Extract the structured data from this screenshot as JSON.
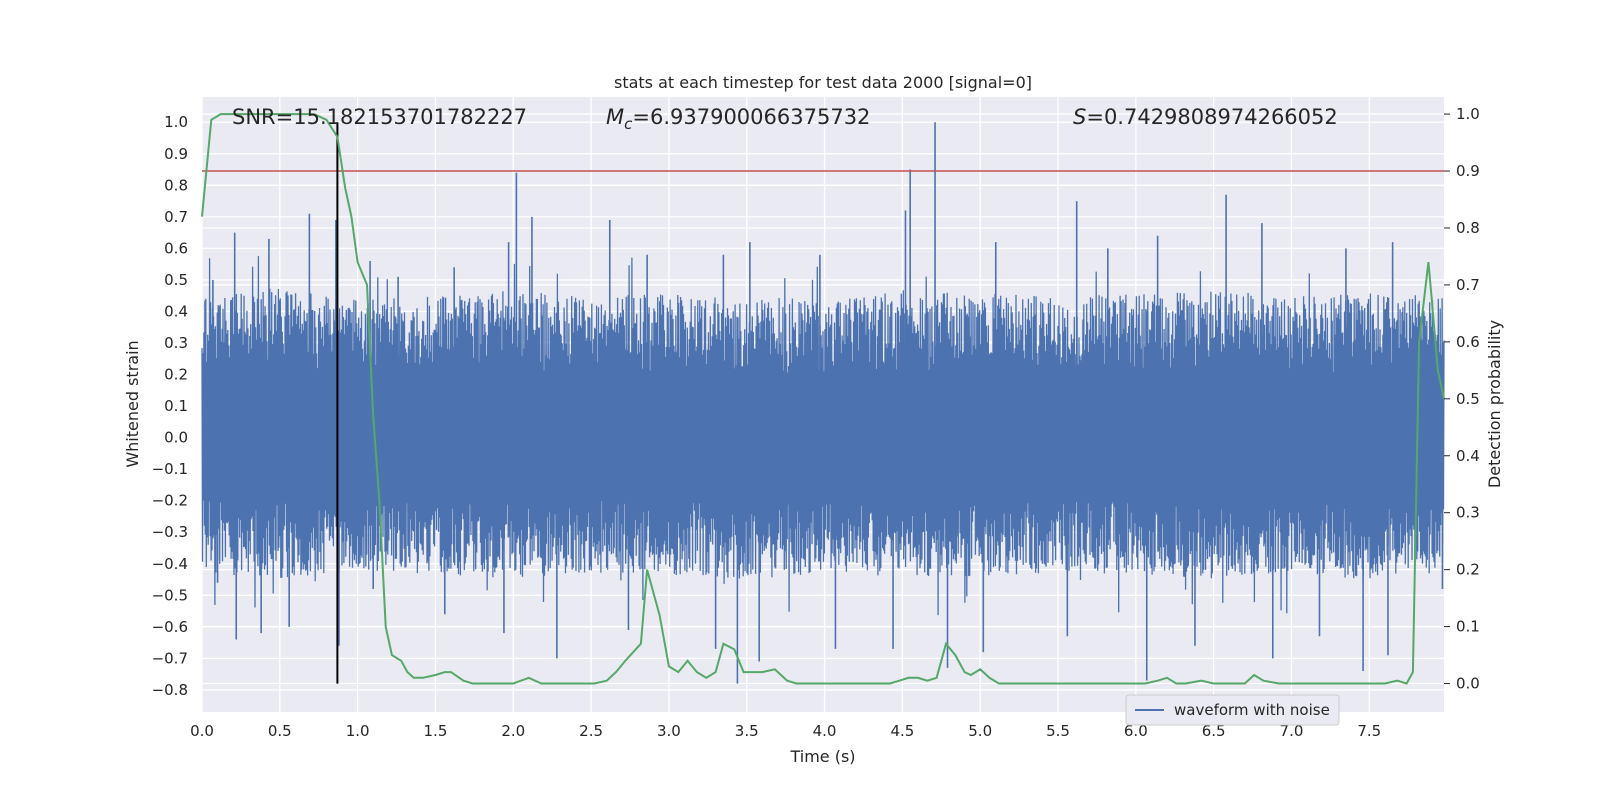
{
  "chart_data": {
    "type": "line",
    "title": "stats at each timestep for test data 2000 [signal=0]",
    "xlabel": "Time (s)",
    "ylabel": "Whitened strain",
    "y2label": "Detection probability",
    "xlim": [
      0.0,
      7.98
    ],
    "ylim": [
      -0.87,
      1.08
    ],
    "y2lim": [
      -0.05,
      1.03
    ],
    "xticks": [
      "0.0",
      "0.5",
      "1.0",
      "1.5",
      "2.0",
      "2.5",
      "3.0",
      "3.5",
      "4.0",
      "4.5",
      "5.0",
      "5.5",
      "6.0",
      "6.5",
      "7.0",
      "7.5"
    ],
    "yticks": [
      "−0.8",
      "−0.7",
      "−0.6",
      "−0.5",
      "−0.4",
      "−0.3",
      "−0.2",
      "−0.1",
      "0.0",
      "0.1",
      "0.2",
      "0.3",
      "0.4",
      "0.5",
      "0.6",
      "0.7",
      "0.8",
      "0.9",
      "1.0"
    ],
    "y2ticks": [
      "0.0",
      "0.1",
      "0.2",
      "0.3",
      "0.4",
      "0.5",
      "0.6",
      "0.7",
      "0.8",
      "0.9",
      "1.0"
    ],
    "grid": true,
    "legend": {
      "placement": "bottom-right",
      "entries": [
        "waveform with noise"
      ]
    },
    "annotations": {
      "snr": "SNR=15.182153701782227",
      "mc_symbol": "M",
      "mc_sub": "c",
      "mc_value": "=6.937900066375732",
      "s_symbol": "S",
      "s_value": "=0.7429808974266052"
    },
    "threshold_line": {
      "axis": "right",
      "y": 0.9,
      "color": "#c44e52"
    },
    "marker_line": {
      "x": 0.87,
      "ymin": -0.78,
      "ymax": 1.0,
      "color": "#000000"
    },
    "colors": {
      "waveform": "#4c72b0",
      "probability": "#55a868",
      "plot_bg": "#eaeaf2",
      "grid": "#ffffff"
    },
    "series": [
      {
        "name": "waveform with noise",
        "axis": "left",
        "description_of_values": "whitened strain noise, typical envelope",
        "envelope_x": [
          0.0,
          0.5,
          1.0,
          1.5,
          2.0,
          2.5,
          3.0,
          3.5,
          4.0,
          4.5,
          5.0,
          5.5,
          6.0,
          6.5,
          7.0,
          7.5,
          7.98
        ],
        "envelope_upper": [
          0.45,
          0.48,
          0.44,
          0.46,
          0.47,
          0.45,
          0.46,
          0.45,
          0.44,
          0.47,
          0.46,
          0.45,
          0.46,
          0.47,
          0.45,
          0.46,
          0.45
        ],
        "envelope_lower": [
          -0.43,
          -0.45,
          -0.42,
          -0.44,
          -0.45,
          -0.43,
          -0.44,
          -0.45,
          -0.44,
          -0.45,
          -0.44,
          -0.43,
          -0.44,
          -0.45,
          -0.44,
          -0.45,
          -0.44
        ],
        "peaks": [
          {
            "x": 0.07,
            "y": 0.5
          },
          {
            "x": 0.21,
            "y": 0.65
          },
          {
            "x": 0.43,
            "y": 0.63
          },
          {
            "x": 0.69,
            "y": 0.71
          },
          {
            "x": 0.86,
            "y": 0.69
          },
          {
            "x": 1.08,
            "y": 0.56
          },
          {
            "x": 1.26,
            "y": 0.51
          },
          {
            "x": 1.62,
            "y": 0.54
          },
          {
            "x": 1.97,
            "y": 0.62
          },
          {
            "x": 2.02,
            "y": 0.84
          },
          {
            "x": 2.12,
            "y": 0.7
          },
          {
            "x": 2.62,
            "y": 0.69
          },
          {
            "x": 2.86,
            "y": 0.58
          },
          {
            "x": 3.35,
            "y": 0.58
          },
          {
            "x": 3.52,
            "y": 0.62
          },
          {
            "x": 3.97,
            "y": 0.58
          },
          {
            "x": 4.52,
            "y": 0.72
          },
          {
            "x": 4.55,
            "y": 0.85
          },
          {
            "x": 4.71,
            "y": 1.0
          },
          {
            "x": 5.1,
            "y": 0.62
          },
          {
            "x": 5.62,
            "y": 0.75
          },
          {
            "x": 5.82,
            "y": 0.6
          },
          {
            "x": 6.14,
            "y": 0.64
          },
          {
            "x": 6.58,
            "y": 0.77
          },
          {
            "x": 6.81,
            "y": 0.68
          },
          {
            "x": 7.35,
            "y": 0.6
          },
          {
            "x": 7.65,
            "y": 0.62
          }
        ],
        "troughs": [
          {
            "x": 0.1,
            "y": -0.46
          },
          {
            "x": 0.22,
            "y": -0.64
          },
          {
            "x": 0.38,
            "y": -0.62
          },
          {
            "x": 0.56,
            "y": -0.6
          },
          {
            "x": 0.88,
            "y": -0.66
          },
          {
            "x": 1.1,
            "y": -0.48
          },
          {
            "x": 1.56,
            "y": -0.56
          },
          {
            "x": 1.94,
            "y": -0.62
          },
          {
            "x": 2.28,
            "y": -0.7
          },
          {
            "x": 2.74,
            "y": -0.61
          },
          {
            "x": 3.3,
            "y": -0.67
          },
          {
            "x": 3.44,
            "y": -0.78
          },
          {
            "x": 3.58,
            "y": -0.71
          },
          {
            "x": 4.07,
            "y": -0.67
          },
          {
            "x": 4.44,
            "y": -0.67
          },
          {
            "x": 4.79,
            "y": -0.73
          },
          {
            "x": 5.02,
            "y": -0.68
          },
          {
            "x": 5.56,
            "y": -0.63
          },
          {
            "x": 6.07,
            "y": -0.77
          },
          {
            "x": 6.38,
            "y": -0.66
          },
          {
            "x": 6.88,
            "y": -0.7
          },
          {
            "x": 7.18,
            "y": -0.63
          },
          {
            "x": 7.46,
            "y": -0.74
          },
          {
            "x": 7.62,
            "y": -0.69
          },
          {
            "x": 7.97,
            "y": -0.48
          }
        ]
      },
      {
        "name": "Detection probability",
        "axis": "right",
        "x": [
          0.0,
          0.06,
          0.12,
          0.2,
          0.4,
          0.6,
          0.72,
          0.8,
          0.87,
          0.92,
          0.96,
          1.0,
          1.06,
          1.1,
          1.14,
          1.18,
          1.22,
          1.28,
          1.32,
          1.36,
          1.42,
          1.5,
          1.56,
          1.6,
          1.68,
          1.74,
          1.8,
          2.0,
          2.1,
          2.18,
          2.26,
          2.4,
          2.52,
          2.6,
          2.66,
          2.72,
          2.82,
          2.86,
          2.94,
          3.0,
          3.06,
          3.12,
          3.18,
          3.24,
          3.3,
          3.35,
          3.42,
          3.48,
          3.56,
          3.6,
          3.68,
          3.76,
          3.82,
          3.88,
          3.94,
          4.2,
          4.42,
          4.48,
          4.54,
          4.6,
          4.66,
          4.72,
          4.78,
          4.84,
          4.9,
          4.94,
          5.0,
          5.06,
          5.12,
          5.2,
          5.5,
          6.06,
          6.14,
          6.2,
          6.26,
          6.32,
          6.42,
          6.5,
          6.58,
          6.7,
          6.76,
          6.82,
          6.92,
          7.0,
          7.1,
          7.2,
          7.3,
          7.4,
          7.5,
          7.6,
          7.68,
          7.74,
          7.78,
          7.82,
          7.88,
          7.9,
          7.94,
          7.98
        ],
        "values": [
          0.82,
          0.99,
          1.0,
          1.0,
          1.0,
          1.0,
          1.0,
          0.99,
          0.96,
          0.87,
          0.82,
          0.74,
          0.7,
          0.47,
          0.32,
          0.1,
          0.05,
          0.04,
          0.02,
          0.01,
          0.01,
          0.015,
          0.02,
          0.02,
          0.005,
          0.0,
          0.0,
          0.0,
          0.01,
          0.0,
          0.0,
          0.0,
          0.0,
          0.005,
          0.02,
          0.04,
          0.07,
          0.2,
          0.12,
          0.03,
          0.02,
          0.04,
          0.02,
          0.01,
          0.02,
          0.07,
          0.06,
          0.02,
          0.02,
          0.02,
          0.025,
          0.005,
          0.0,
          0.0,
          0.0,
          0.0,
          0.0,
          0.005,
          0.01,
          0.01,
          0.005,
          0.01,
          0.07,
          0.05,
          0.02,
          0.015,
          0.025,
          0.01,
          0.0,
          0.0,
          0.0,
          0.0,
          0.005,
          0.01,
          0.0,
          0.0,
          0.005,
          0.0,
          0.0,
          0.0,
          0.015,
          0.005,
          0.0,
          0.0,
          0.0,
          0.0,
          0.0,
          0.0,
          0.0,
          0.0,
          0.005,
          0.0,
          0.02,
          0.6,
          0.74,
          0.68,
          0.55,
          0.5
        ]
      }
    ]
  }
}
